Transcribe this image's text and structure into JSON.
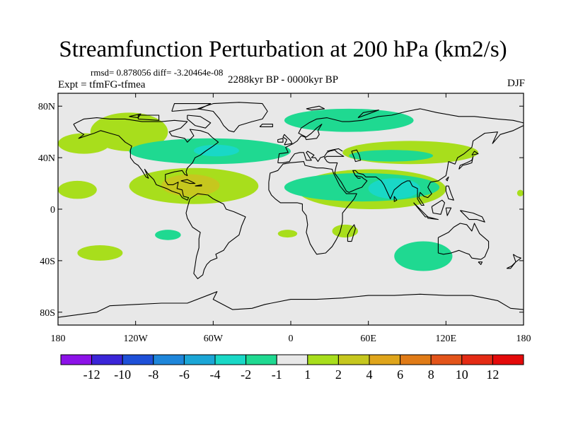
{
  "title": "Streamfunction Perturbation at 200 hPa (km2/s)",
  "stats_line": "rmsd= 0.878056 diff= -3.20464e-08",
  "experiment": "Expt = tfmFG-tfmea",
  "period": "2288kyr BP - 0000kyr BP",
  "season": "DJF",
  "map": {
    "projection": "cylindrical-equidistant",
    "lon_range": [
      -180,
      180
    ],
    "lat_range": [
      -90,
      90
    ],
    "ocean_color": "#e8e8e8",
    "coast_color": "#000000",
    "lat_ticks": [
      {
        "value": 80,
        "label": "80N"
      },
      {
        "value": 40,
        "label": "40N"
      },
      {
        "value": 0,
        "label": "0"
      },
      {
        "value": -40,
        "label": "40S"
      },
      {
        "value": -80,
        "label": "80S"
      }
    ],
    "lon_ticks": [
      {
        "value": -180,
        "label": "180"
      },
      {
        "value": -120,
        "label": "120W"
      },
      {
        "value": -60,
        "label": "60W"
      },
      {
        "value": 0,
        "label": "0"
      },
      {
        "value": 60,
        "label": "60E"
      },
      {
        "value": 120,
        "label": "120E"
      },
      {
        "value": 180,
        "label": "180"
      }
    ],
    "anomaly_regions": [
      {
        "name": "n-america-west-pos",
        "level": "1 to 2",
        "color": "#a8de1c",
        "lon_min": -155,
        "lon_max": -95,
        "lat_min": 45,
        "lat_max": 75
      },
      {
        "name": "n-pacific-pos",
        "level": "1 to 2",
        "color": "#a8de1c",
        "lon_min": -180,
        "lon_max": -140,
        "lat_min": 43,
        "lat_max": 59
      },
      {
        "name": "north-atlantic-neg",
        "level": "-1 to -2",
        "color": "#1fd991",
        "lon_min": -125,
        "lon_max": 0,
        "lat_min": 35,
        "lat_max": 55
      },
      {
        "name": "north-atlantic-neg-core",
        "level": "-2 to -4",
        "color": "#19d8c6",
        "lon_min": -75,
        "lon_max": -40,
        "lat_min": 41,
        "lat_max": 50
      },
      {
        "name": "eurasia-neg",
        "level": "-1 to -2",
        "color": "#1fd991",
        "lon_min": -5,
        "lon_max": 95,
        "lat_min": 60,
        "lat_max": 78
      },
      {
        "name": "n-africa-arc-pos",
        "level": "1 to 2",
        "color": "#a8de1c",
        "lon_min": 40,
        "lon_max": 145,
        "lat_min": 35,
        "lat_max": 53
      },
      {
        "name": "n-africa-arc-neg",
        "level": "-1 to -2",
        "color": "#1fd991",
        "lon_min": 45,
        "lon_max": 110,
        "lat_min": 37,
        "lat_max": 46
      },
      {
        "name": "caribbean-pos",
        "level": "1 to 2",
        "color": "#a8de1c",
        "lon_min": -125,
        "lon_max": -25,
        "lat_min": 4,
        "lat_max": 32
      },
      {
        "name": "caribbean-pos-core",
        "level": "2 to 4",
        "color": "#c6c71e",
        "lon_min": -100,
        "lon_max": -55,
        "lat_min": 10,
        "lat_max": 27
      },
      {
        "name": "mid-pacific-pos",
        "level": "1 to 2",
        "color": "#a8de1c",
        "lon_min": -180,
        "lon_max": -150,
        "lat_min": 8,
        "lat_max": 22
      },
      {
        "name": "africa-asia-pos",
        "level": "1 to 2",
        "color": "#a8de1c",
        "lon_min": 5,
        "lon_max": 120,
        "lat_min": 0,
        "lat_max": 31
      },
      {
        "name": "africa-asia-neg",
        "level": "-1 to -2",
        "color": "#1fd991",
        "lon_min": -5,
        "lon_max": 115,
        "lat_min": 6,
        "lat_max": 28
      },
      {
        "name": "indian-neg-core",
        "level": "-2 to -4",
        "color": "#19d8c6",
        "lon_min": 60,
        "lon_max": 100,
        "lat_min": 8,
        "lat_max": 24
      },
      {
        "name": "s-pacific-small-neg",
        "level": "-1 to -2",
        "color": "#1fd991",
        "lon_min": -105,
        "lon_max": -85,
        "lat_min": -24,
        "lat_max": -16
      },
      {
        "name": "s-pacific-pos",
        "level": "1 to 2",
        "color": "#a8de1c",
        "lon_min": -165,
        "lon_max": -130,
        "lat_min": -40,
        "lat_max": -28
      },
      {
        "name": "s-atlantic-pos",
        "level": "1 to 2",
        "color": "#a8de1c",
        "lon_min": -10,
        "lon_max": 5,
        "lat_min": -22,
        "lat_max": -16
      },
      {
        "name": "madagascar-pos",
        "level": "1 to 2",
        "color": "#a8de1c",
        "lon_min": 32,
        "lon_max": 52,
        "lat_min": -22,
        "lat_max": -12
      },
      {
        "name": "s-indian-neg",
        "level": "-1 to -2",
        "color": "#1fd991",
        "lon_min": 80,
        "lon_max": 125,
        "lat_min": -48,
        "lat_max": -25
      },
      {
        "name": "e-pacific-pos-small",
        "level": "1 to 2",
        "color": "#a8de1c",
        "lon_min": 175,
        "lon_max": 180,
        "lat_min": 10,
        "lat_max": 15
      }
    ]
  },
  "colorbar": {
    "colors": [
      "#8c12e8",
      "#3b25d8",
      "#1e50d8",
      "#1e86da",
      "#1ba6d6",
      "#19d8c6",
      "#1fd991",
      "#e8e8e8",
      "#a8de1c",
      "#c6c71e",
      "#dfa51b",
      "#e07b17",
      "#e3541a",
      "#e42b14",
      "#e40a0a"
    ],
    "labels": [
      "-12",
      "-10",
      "-8",
      "-6",
      "-4",
      "-2",
      "-1",
      "1",
      "2",
      "4",
      "6",
      "8",
      "10",
      "12"
    ]
  }
}
